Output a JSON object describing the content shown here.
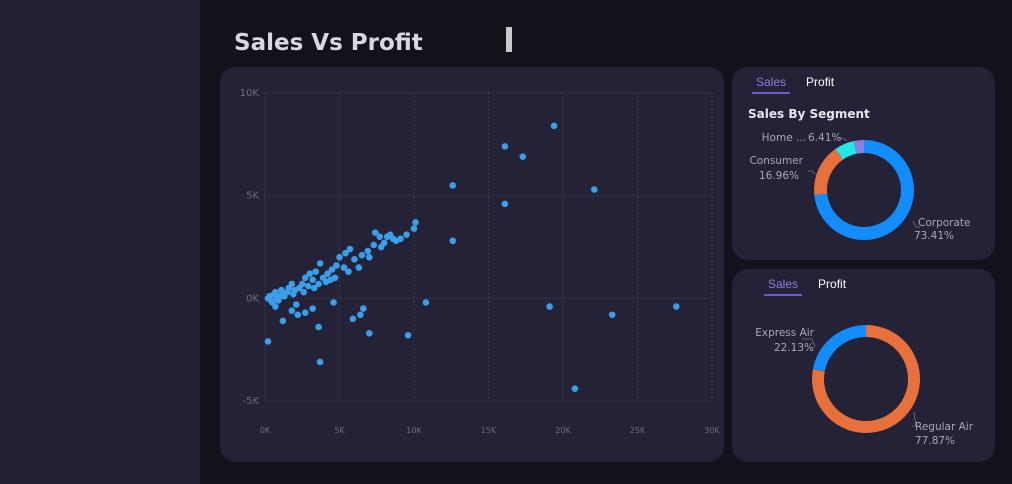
{
  "page": {
    "title": "Sales Vs Profit"
  },
  "colors": {
    "background": "#13121b",
    "sidebar": "#212033",
    "card": "#232236",
    "point": "#3a9fe8",
    "tab_active": "#8f7de0"
  },
  "segment_card": {
    "tabs": [
      {
        "label": "Sales",
        "active": true
      },
      {
        "label": "Profit",
        "active": false
      }
    ],
    "title": "Sales By Segment"
  },
  "ship_card": {
    "tabs": [
      {
        "label": "Sales",
        "active": true
      },
      {
        "label": "Profit",
        "active": false
      }
    ]
  },
  "chart_data": [
    {
      "type": "scatter",
      "title": "",
      "xlabel": "",
      "ylabel": "",
      "xlim": [
        0,
        30000
      ],
      "ylim": [
        -5000,
        10000
      ],
      "x_ticks": [
        "0K",
        "5K",
        "10K",
        "15K",
        "20K",
        "25K",
        "30K"
      ],
      "y_ticks": [
        "10K",
        "5K",
        "0K",
        "-5K"
      ],
      "grid": true,
      "color": "#3a9fe8",
      "points": [
        [
          16100,
          7400
        ],
        [
          17300,
          6900
        ],
        [
          19400,
          8400
        ],
        [
          12600,
          5500
        ],
        [
          22100,
          5300
        ],
        [
          16100,
          4600
        ],
        [
          10100,
          3700
        ],
        [
          12600,
          2800
        ],
        [
          10000,
          3400
        ],
        [
          9500,
          3100
        ],
        [
          9100,
          2900
        ],
        [
          8800,
          2800
        ],
        [
          8200,
          3000
        ],
        [
          8400,
          3100
        ],
        [
          7700,
          3000
        ],
        [
          7400,
          3200
        ],
        [
          7300,
          2600
        ],
        [
          7800,
          2500
        ],
        [
          6900,
          2300
        ],
        [
          5700,
          2400
        ],
        [
          5400,
          2200
        ],
        [
          5000,
          2000
        ],
        [
          4800,
          1600
        ],
        [
          6000,
          1900
        ],
        [
          5300,
          1500
        ],
        [
          4500,
          1400
        ],
        [
          3700,
          1700
        ],
        [
          4200,
          1200
        ],
        [
          3400,
          1300
        ],
        [
          3900,
          1000
        ],
        [
          3200,
          900
        ],
        [
          3000,
          1200
        ],
        [
          2700,
          1000
        ],
        [
          2500,
          700
        ],
        [
          2300,
          500
        ],
        [
          2000,
          400
        ],
        [
          1800,
          700
        ],
        [
          1500,
          300
        ],
        [
          1200,
          200
        ],
        [
          1000,
          100
        ],
        [
          800,
          0
        ],
        [
          600,
          200
        ],
        [
          400,
          -100
        ],
        [
          300,
          100
        ],
        [
          200,
          0
        ],
        [
          500,
          -200
        ],
        [
          700,
          300
        ],
        [
          900,
          -100
        ],
        [
          1100,
          400
        ],
        [
          1300,
          100
        ],
        [
          1600,
          500
        ],
        [
          1900,
          200
        ],
        [
          2100,
          -300
        ],
        [
          2600,
          300
        ],
        [
          2900,
          600
        ],
        [
          3300,
          500
        ],
        [
          3600,
          700
        ],
        [
          4100,
          800
        ],
        [
          4400,
          900
        ],
        [
          4700,
          1000
        ],
        [
          5600,
          1300
        ],
        [
          6300,
          1500
        ],
        [
          6500,
          2100
        ],
        [
          7000,
          2000
        ],
        [
          8000,
          2700
        ],
        [
          8600,
          2900
        ],
        [
          6600,
          -500
        ],
        [
          6400,
          -800
        ],
        [
          5900,
          -1000
        ],
        [
          4600,
          -200
        ],
        [
          3600,
          -1400
        ],
        [
          3200,
          -500
        ],
        [
          2700,
          -700
        ],
        [
          2200,
          -800
        ],
        [
          1800,
          -600
        ],
        [
          1200,
          -1100
        ],
        [
          700,
          -400
        ],
        [
          200,
          -2100
        ],
        [
          3700,
          -3100
        ],
        [
          7000,
          -1700
        ],
        [
          9600,
          -1800
        ],
        [
          10800,
          -200
        ],
        [
          19100,
          -400
        ],
        [
          23300,
          -800
        ],
        [
          27600,
          -400
        ],
        [
          20800,
          -4400
        ]
      ]
    },
    {
      "type": "pie",
      "title": "Sales By Segment",
      "slices": [
        {
          "label": "Corporate",
          "percent_text": "73.41%",
          "value": 73.41,
          "color": "#118dff"
        },
        {
          "label": "Consumer",
          "percent_text": "16.96%",
          "value": 16.96,
          "color": "#e8703a"
        },
        {
          "label": "Home ...",
          "percent_text": "6.41%",
          "value": 6.41,
          "color": "#22e8e8"
        },
        {
          "label": "",
          "percent_text": "",
          "value": 3.22,
          "color": "#8f7de0"
        }
      ]
    },
    {
      "type": "pie",
      "title": "",
      "slices": [
        {
          "label": "Regular Air",
          "percent_text": "77.87%",
          "value": 77.87,
          "color": "#e8703a"
        },
        {
          "label": "Express Air",
          "percent_text": "22.13%",
          "value": 22.13,
          "color": "#118dff"
        }
      ]
    }
  ]
}
